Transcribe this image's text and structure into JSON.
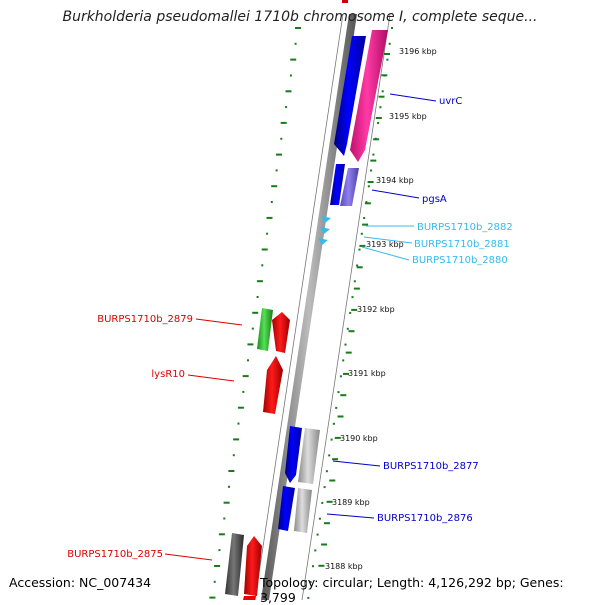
{
  "header": {
    "title": "Burkholderia pseudomallei 1710b chromosome I, complete seque..."
  },
  "footer": {
    "accession": "Accession: NC_007434",
    "summary": "Topology: circular; Length: 4,126,292 bp; Genes: 3,799"
  },
  "colors": {
    "backbone": "#8a8a8a",
    "tick": "#1a7a1a",
    "blue_gene": "#0000ee",
    "pink_gene": "#ff1493",
    "purple_gene": "#7b68ee",
    "cyan_gene": "#33bbee",
    "green_gene": "#33cc33",
    "red_gene": "#ee0000",
    "grey_gene": "#bbbbbb",
    "dark_gene": "#555555"
  },
  "kbp_labels": [
    "3196 kbp",
    "3195 kbp",
    "3194 kbp",
    "3193 kbp",
    "3192 kbp",
    "3191 kbp",
    "3190 kbp",
    "3189 kbp",
    "3188 kbp"
  ],
  "gene_labels": [
    {
      "name": "uvrC",
      "color": "#0000cc"
    },
    {
      "name": "pgsA",
      "color": "#0000cc"
    },
    {
      "name": "BURPS1710b_2882",
      "color": "#33bbee"
    },
    {
      "name": "BURPS1710b_2881",
      "color": "#33bbee"
    },
    {
      "name": "BURPS1710b_2880",
      "color": "#33bbee"
    },
    {
      "name": "BURPS1710b_2879",
      "color": "#dd0000"
    },
    {
      "name": "lysR10",
      "color": "#dd0000"
    },
    {
      "name": "BURPS1710b_2877",
      "color": "#0000cc"
    },
    {
      "name": "BURPS1710b_2876",
      "color": "#0000cc"
    },
    {
      "name": "BURPS1710b_2875",
      "color": "#dd0000"
    }
  ]
}
